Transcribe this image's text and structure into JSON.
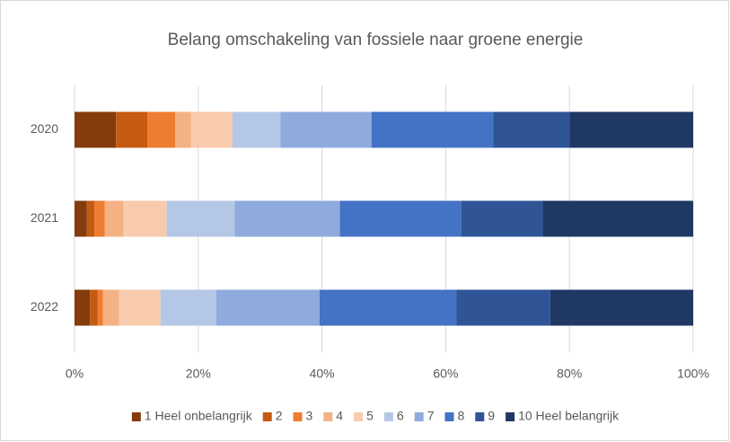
{
  "chart_data": {
    "type": "stacked_barh",
    "title": "Belang omschakeling van fossiele naar groene energie",
    "categories": [
      "2020",
      "2021",
      "2022"
    ],
    "series": [
      {
        "name": "1 Heel onbelangrijk",
        "color": "#843c0c",
        "values": [
          6.7,
          2.0,
          2.5
        ]
      },
      {
        "name": "2",
        "color": "#c55a11",
        "values": [
          5.1,
          1.2,
          1.2
        ]
      },
      {
        "name": "3",
        "color": "#ed7d31",
        "values": [
          4.5,
          1.7,
          0.9
        ]
      },
      {
        "name": "4",
        "color": "#f4b183",
        "values": [
          2.5,
          3.0,
          2.6
        ]
      },
      {
        "name": "5",
        "color": "#f8cbad",
        "values": [
          6.7,
          7.0,
          6.7
        ]
      },
      {
        "name": "6",
        "color": "#b4c7e7",
        "values": [
          7.8,
          11.0,
          9.0
        ]
      },
      {
        "name": "7",
        "color": "#8faadc",
        "values": [
          14.7,
          17.0,
          16.7
        ]
      },
      {
        "name": "8",
        "color": "#4472c4",
        "values": [
          19.7,
          19.6,
          22.1
        ]
      },
      {
        "name": "9",
        "color": "#2f5597",
        "values": [
          12.3,
          13.2,
          15.2
        ]
      },
      {
        "name": "10 Heel belangrijk",
        "color": "#1f3864",
        "values": [
          20.0,
          24.3,
          23.1
        ]
      }
    ],
    "xlim": [
      0,
      100
    ],
    "xticks": [
      {
        "value": 0,
        "label": "0%"
      },
      {
        "value": 20,
        "label": "20%"
      },
      {
        "value": 40,
        "label": "40%"
      },
      {
        "value": 60,
        "label": "60%"
      },
      {
        "value": 80,
        "label": "80%"
      },
      {
        "value": 100,
        "label": "100%"
      }
    ],
    "grid": true,
    "legend": "bottom"
  }
}
